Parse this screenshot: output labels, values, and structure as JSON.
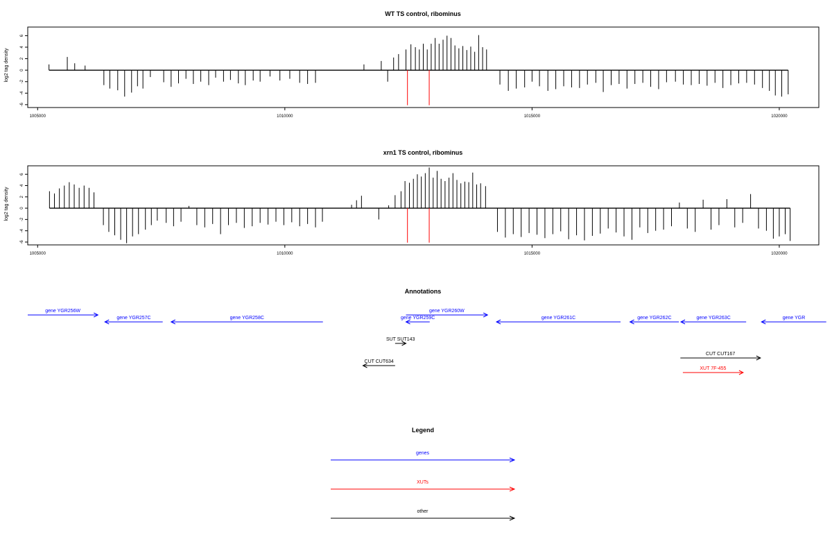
{
  "colors": {
    "gene": "#0000ff",
    "xut": "#ff0000",
    "other": "#000000",
    "mark": "#ff0000",
    "axis": "#000000",
    "bar": "#000000"
  },
  "chart_data": [
    {
      "type": "bar",
      "title": "WT TS control, ribominus",
      "ylabel": "log2 tag density",
      "xlim": [
        1004800,
        1020800
      ],
      "ylim": [
        -6.5,
        7.5
      ],
      "xticks": [
        1005000,
        1010000,
        1015000,
        1020000
      ],
      "yticks": [
        -6,
        -4,
        -2,
        0,
        2,
        4,
        6
      ],
      "red_markers_x": [
        1012480,
        1012920
      ],
      "series": [
        {
          "x": [
            1005230,
            1005600,
            1005750,
            1005960,
            1006340,
            1006460,
            1006620,
            1006760,
            1006900,
            1007020,
            1007130,
            1007280,
            1007550,
            1007700,
            1007850,
            1008000,
            1008150,
            1008300,
            1008460,
            1008600,
            1008760,
            1008900,
            1009060,
            1009200,
            1009360,
            1009500,
            1009700,
            1009900,
            1010100,
            1010300,
            1010460,
            1010620,
            1011600,
            1011950,
            1012080,
            1012200,
            1012300,
            1012450,
            1012550,
            1012640,
            1012720,
            1012800,
            1012880,
            1012960,
            1013040,
            1013120,
            1013200,
            1013280,
            1013360,
            1013440,
            1013520,
            1013600,
            1013680,
            1013760,
            1013840,
            1013920,
            1014000,
            1014080,
            1014350,
            1014520,
            1014680,
            1014850,
            1015000,
            1015150,
            1015320,
            1015480,
            1015640,
            1015800,
            1015960,
            1016120,
            1016290,
            1016440,
            1016600,
            1016760,
            1016920,
            1017080,
            1017240,
            1017400,
            1017560,
            1017720,
            1017900,
            1018060,
            1018220,
            1018380,
            1018540,
            1018700,
            1018860,
            1019020,
            1019180,
            1019340,
            1019500,
            1019660,
            1019800,
            1019920,
            1020050,
            1020180
          ],
          "values": [
            1.0,
            2.3,
            1.2,
            0.8,
            -2.6,
            -3.2,
            -3.5,
            -4.6,
            -3.9,
            -2.8,
            -3.2,
            -1.2,
            -2.1,
            -2.9,
            -2.3,
            -1.5,
            -2.4,
            -2.0,
            -2.6,
            -1.3,
            -2.0,
            -1.7,
            -2.3,
            -2.6,
            -1.8,
            -2.0,
            -1.1,
            -1.8,
            -1.5,
            -2.2,
            -2.4,
            -2.2,
            1.0,
            1.6,
            -2.0,
            2.2,
            2.8,
            3.6,
            4.5,
            4.0,
            3.6,
            4.6,
            3.6,
            4.6,
            5.6,
            4.6,
            5.3,
            6.0,
            5.6,
            4.3,
            3.8,
            4.2,
            3.5,
            4.1,
            3.2,
            6.1,
            4.0,
            3.6,
            -2.5,
            -3.6,
            -3.2,
            -3.0,
            -2.0,
            -2.8,
            -3.6,
            -3.3,
            -2.8,
            -3.0,
            -3.1,
            -2.5,
            -2.2,
            -3.8,
            -2.6,
            -2.4,
            -3.2,
            -2.4,
            -2.2,
            -2.9,
            -3.3,
            -2.1,
            -2.0,
            -2.5,
            -2.6,
            -2.4,
            -2.7,
            -2.2,
            -3.1,
            -2.6,
            -2.3,
            -2.2,
            -2.5,
            -3.1,
            -3.6,
            -4.4,
            -4.6,
            -4.2
          ]
        }
      ]
    },
    {
      "type": "bar",
      "title": "xrn1 TS control, ribominus",
      "ylabel": "log2 tag density",
      "xlim": [
        1004800,
        1020800
      ],
      "ylim": [
        -6.5,
        7.5
      ],
      "xticks": [
        1005000,
        1010000,
        1015000,
        1020000
      ],
      "yticks": [
        -6,
        -4,
        -2,
        0,
        2,
        4,
        6
      ],
      "red_markers_x": [
        1012480,
        1012920
      ],
      "series": [
        {
          "x": [
            1005240,
            1005340,
            1005440,
            1005540,
            1005640,
            1005740,
            1005840,
            1005940,
            1006040,
            1006140,
            1006330,
            1006440,
            1006560,
            1006680,
            1006800,
            1006920,
            1007040,
            1007180,
            1007300,
            1007420,
            1007600,
            1007750,
            1007900,
            1008060,
            1008220,
            1008380,
            1008540,
            1008700,
            1008860,
            1009020,
            1009180,
            1009340,
            1009500,
            1009660,
            1009820,
            1009980,
            1010140,
            1010300,
            1010460,
            1010620,
            1010760,
            1011350,
            1011450,
            1011550,
            1011900,
            1012100,
            1012230,
            1012350,
            1012430,
            1012520,
            1012600,
            1012680,
            1012760,
            1012840,
            1012920,
            1013000,
            1013080,
            1013160,
            1013240,
            1013320,
            1013400,
            1013480,
            1013560,
            1013640,
            1013720,
            1013800,
            1013880,
            1013960,
            1014060,
            1014300,
            1014460,
            1014620,
            1014780,
            1014940,
            1015100,
            1015260,
            1015420,
            1015580,
            1015740,
            1015900,
            1016060,
            1016220,
            1016380,
            1016540,
            1016700,
            1016860,
            1017020,
            1017180,
            1017340,
            1017500,
            1017660,
            1017820,
            1017980,
            1018140,
            1018300,
            1018460,
            1018620,
            1018780,
            1018940,
            1019100,
            1019260,
            1019420,
            1019580,
            1019740,
            1019880,
            1020000,
            1020120,
            1020220
          ],
          "values": [
            3.0,
            2.6,
            3.5,
            4.0,
            4.6,
            4.2,
            3.6,
            4.0,
            3.6,
            2.8,
            -3.0,
            -4.2,
            -4.8,
            -5.6,
            -6.2,
            -5.0,
            -4.6,
            -3.8,
            -3.0,
            -2.2,
            -2.6,
            -3.2,
            -2.4,
            0.4,
            -3.0,
            -3.4,
            -2.8,
            -4.6,
            -3.0,
            -2.6,
            -3.5,
            -3.2,
            -2.6,
            -2.9,
            -2.4,
            -3.0,
            -2.5,
            -3.2,
            -2.8,
            -3.4,
            -2.4,
            0.6,
            1.4,
            2.2,
            -2.0,
            0.5,
            2.3,
            3.0,
            4.8,
            4.5,
            5.2,
            6.0,
            5.6,
            6.2,
            7.2,
            5.4,
            6.6,
            5.2,
            4.8,
            5.4,
            6.2,
            5.0,
            4.4,
            4.7,
            4.6,
            6.3,
            4.2,
            4.4,
            3.9,
            -4.2,
            -5.2,
            -4.6,
            -5.1,
            -4.4,
            -4.7,
            -5.3,
            -4.6,
            -4.1,
            -5.5,
            -4.8,
            -5.7,
            -4.9,
            -4.5,
            -3.6,
            -4.3,
            -5.0,
            -5.6,
            -3.4,
            -4.4,
            -4.0,
            -3.8,
            -3.2,
            1.0,
            -3.6,
            -4.2,
            1.5,
            -3.8,
            -3.0,
            1.6,
            -3.4,
            -2.6,
            2.5,
            -3.6,
            -4.0,
            -5.4,
            -5.0,
            -4.6,
            -5.8
          ]
        }
      ]
    }
  ],
  "annotations": {
    "title": "Annotations",
    "items": [
      {
        "label": "gene YGR256W",
        "kind": "gene",
        "dir": "right",
        "start": 1004800,
        "end": 1006220,
        "row": 0
      },
      {
        "label": "gene YGR257C",
        "kind": "gene",
        "dir": "left",
        "start": 1006360,
        "end": 1007530,
        "row": 1
      },
      {
        "label": "gene YGR258C",
        "kind": "gene",
        "dir": "left",
        "start": 1007700,
        "end": 1010770,
        "row": 1
      },
      {
        "label": "gene YGR259C",
        "kind": "gene",
        "dir": "left",
        "start": 1012450,
        "end": 1012930,
        "row": 1
      },
      {
        "label": "gene YGR260W",
        "kind": "gene",
        "dir": "right",
        "start": 1012450,
        "end": 1014100,
        "row": 0
      },
      {
        "label": "gene YGR261C",
        "kind": "gene",
        "dir": "left",
        "start": 1014280,
        "end": 1016790,
        "row": 1
      },
      {
        "label": "gene YGR262C",
        "kind": "gene",
        "dir": "left",
        "start": 1016980,
        "end": 1017970,
        "row": 1
      },
      {
        "label": "gene YGR263C",
        "kind": "gene",
        "dir": "left",
        "start": 1018010,
        "end": 1019330,
        "row": 1
      },
      {
        "label": "gene YGR",
        "kind": "gene",
        "dir": "left",
        "start": 1019640,
        "end": 1020950,
        "row": 1
      },
      {
        "label": "SUT SUT143",
        "kind": "other",
        "dir": "right",
        "start": 1012230,
        "end": 1012450,
        "row": 2
      },
      {
        "label": "CUT CUT634",
        "kind": "other",
        "dir": "left",
        "start": 1011580,
        "end": 1012230,
        "row": 3
      },
      {
        "label": "CUT CUT167",
        "kind": "other",
        "dir": "right",
        "start": 1018000,
        "end": 1019620,
        "row": 4
      },
      {
        "label": "XUT 7F-455",
        "kind": "xut",
        "dir": "right",
        "start": 1018050,
        "end": 1019270,
        "row": 5
      }
    ]
  },
  "legend": {
    "title": "Legend",
    "items": [
      {
        "label": "genes",
        "kind": "gene"
      },
      {
        "label": "XUTs",
        "kind": "xut"
      },
      {
        "label": "other",
        "kind": "other"
      }
    ]
  }
}
